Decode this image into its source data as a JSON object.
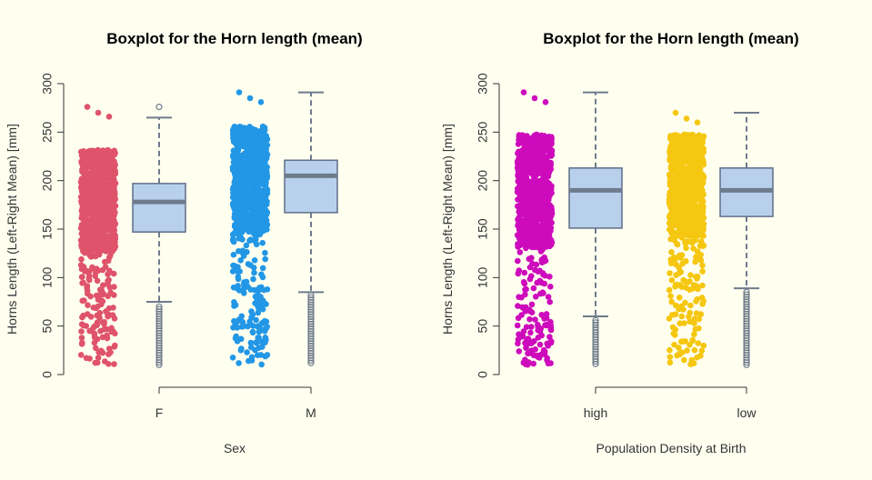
{
  "colors": {
    "background": "#fffff0",
    "box_fill": "#b8d0ec",
    "box_stroke": "#5f6f88",
    "median": "#6e7b8b",
    "whisker": "#6e7b8b",
    "outlier": "#6e7b8b"
  },
  "chart_data": [
    {
      "type": "boxplot",
      "title": "Boxplot for the Horn length (mean)",
      "xlabel": "Sex",
      "ylabel": "Horns Length (Left-Right Mean) [mm]",
      "ylim": [
        0,
        300
      ],
      "yticks": [
        0,
        50,
        100,
        150,
        200,
        250,
        300
      ],
      "grid": false,
      "categories": [
        "F",
        "M"
      ],
      "jitter_colors": [
        "#df536b",
        "#2297e6"
      ],
      "boxes": [
        {
          "category": "F",
          "whisker_low": 75,
          "q1": 147,
          "median": 178,
          "q3": 197,
          "whisker_high": 265,
          "outlier_low_min": 10,
          "outlier_low_max": 70,
          "outlier_high": [
            276
          ],
          "jitter_min": 10,
          "jitter_max": 276
        },
        {
          "category": "M",
          "whisker_low": 85,
          "q1": 167,
          "median": 205,
          "q3": 221,
          "whisker_high": 291,
          "outlier_low_min": 10,
          "outlier_low_max": 82,
          "outlier_high": [],
          "jitter_min": 10,
          "jitter_max": 291
        }
      ]
    },
    {
      "type": "boxplot",
      "title": "Boxplot for the Horn length (mean)",
      "xlabel": "Population Density at Birth",
      "ylabel": "Horns Length (Left-Right Mean) [mm]",
      "ylim": [
        0,
        300
      ],
      "yticks": [
        0,
        50,
        100,
        150,
        200,
        250,
        300
      ],
      "grid": false,
      "categories": [
        "high",
        "low"
      ],
      "jitter_colors": [
        "#cd0bbc",
        "#f5c710"
      ],
      "boxes": [
        {
          "category": "high",
          "whisker_low": 60,
          "q1": 151,
          "median": 190,
          "q3": 213,
          "whisker_high": 291,
          "outlier_low_min": 10,
          "outlier_low_max": 56,
          "outlier_high": [],
          "jitter_min": 10,
          "jitter_max": 291
        },
        {
          "category": "low",
          "whisker_low": 89,
          "q1": 163,
          "median": 190,
          "q3": 213,
          "whisker_high": 270,
          "outlier_low_min": 10,
          "outlier_low_max": 85,
          "outlier_high": [],
          "jitter_min": 10,
          "jitter_max": 270
        }
      ]
    }
  ]
}
